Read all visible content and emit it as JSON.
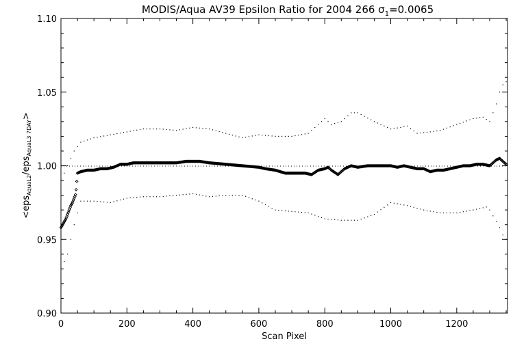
{
  "chart_data": {
    "type": "scatter",
    "title": "MODIS/Aqua AV39 Epsilon Ratio for 2004 266 σ",
    "title_sub": "1",
    "title_suffix": "=0.0065",
    "xlabel": "Scan Pixel",
    "ylabel_parts": [
      {
        "t": "<eps",
        "sub": false
      },
      {
        "t": "AquaL2",
        "sub": true
      },
      {
        "t": "/eps",
        "sub": false
      },
      {
        "t": "AquaL3 7DAY",
        "sub": true
      },
      {
        "t": ">",
        "sub": false
      }
    ],
    "xlim": [
      0,
      1354
    ],
    "ylim": [
      0.9,
      1.1
    ],
    "xticks": [
      0,
      200,
      400,
      600,
      800,
      1000,
      1200
    ],
    "yticks": [
      0.9,
      0.95,
      1.0,
      1.05,
      1.1
    ],
    "ytick_labels": [
      "0.90",
      "0.95",
      "1.00",
      "1.05",
      "1.10"
    ],
    "reference_line_y": 1.0,
    "grid": false,
    "series": [
      {
        "role": "mean",
        "style": "dense-markers",
        "color": "#000000",
        "points": [
          [
            0,
            0.958
          ],
          [
            5,
            0.96
          ],
          [
            10,
            0.962
          ],
          [
            15,
            0.964
          ],
          [
            20,
            0.967
          ],
          [
            25,
            0.97
          ],
          [
            30,
            0.973
          ],
          [
            35,
            0.975
          ],
          [
            40,
            0.978
          ],
          [
            45,
            0.981
          ],
          [
            50,
            0.995
          ],
          [
            60,
            0.996
          ],
          [
            80,
            0.997
          ],
          [
            100,
            0.997
          ],
          [
            120,
            0.998
          ],
          [
            140,
            0.998
          ],
          [
            160,
            0.999
          ],
          [
            180,
            1.001
          ],
          [
            200,
            1.001
          ],
          [
            220,
            1.002
          ],
          [
            250,
            1.002
          ],
          [
            280,
            1.002
          ],
          [
            300,
            1.002
          ],
          [
            320,
            1.002
          ],
          [
            350,
            1.002
          ],
          [
            380,
            1.003
          ],
          [
            400,
            1.003
          ],
          [
            420,
            1.003
          ],
          [
            450,
            1.002
          ],
          [
            500,
            1.001
          ],
          [
            550,
            1.0
          ],
          [
            600,
            0.999
          ],
          [
            620,
            0.998
          ],
          [
            650,
            0.997
          ],
          [
            680,
            0.995
          ],
          [
            700,
            0.995
          ],
          [
            720,
            0.995
          ],
          [
            740,
            0.995
          ],
          [
            760,
            0.994
          ],
          [
            780,
            0.997
          ],
          [
            800,
            0.998
          ],
          [
            810,
            0.999
          ],
          [
            820,
            0.997
          ],
          [
            840,
            0.994
          ],
          [
            860,
            0.998
          ],
          [
            880,
            1.0
          ],
          [
            900,
            0.999
          ],
          [
            930,
            1.0
          ],
          [
            960,
            1.0
          ],
          [
            980,
            1.0
          ],
          [
            1000,
            1.0
          ],
          [
            1020,
            0.999
          ],
          [
            1040,
            1.0
          ],
          [
            1060,
            0.999
          ],
          [
            1080,
            0.998
          ],
          [
            1100,
            0.998
          ],
          [
            1120,
            0.996
          ],
          [
            1140,
            0.997
          ],
          [
            1160,
            0.997
          ],
          [
            1180,
            0.998
          ],
          [
            1200,
            0.999
          ],
          [
            1220,
            1.0
          ],
          [
            1240,
            1.0
          ],
          [
            1260,
            1.001
          ],
          [
            1280,
            1.001
          ],
          [
            1300,
            1.0
          ],
          [
            1310,
            1.002
          ],
          [
            1320,
            1.004
          ],
          [
            1330,
            1.005
          ],
          [
            1340,
            1.003
          ],
          [
            1350,
            1.001
          ]
        ]
      },
      {
        "role": "upper-sigma",
        "style": "sparse-dots",
        "color": "#000000",
        "points": [
          [
            0,
            0.99
          ],
          [
            20,
            1.0
          ],
          [
            40,
            1.01
          ],
          [
            60,
            1.016
          ],
          [
            100,
            1.019
          ],
          [
            150,
            1.021
          ],
          [
            200,
            1.023
          ],
          [
            250,
            1.025
          ],
          [
            300,
            1.025
          ],
          [
            350,
            1.024
          ],
          [
            400,
            1.026
          ],
          [
            450,
            1.025
          ],
          [
            500,
            1.022
          ],
          [
            550,
            1.019
          ],
          [
            600,
            1.021
          ],
          [
            650,
            1.02
          ],
          [
            700,
            1.02
          ],
          [
            750,
            1.022
          ],
          [
            790,
            1.03
          ],
          [
            800,
            1.032
          ],
          [
            820,
            1.028
          ],
          [
            850,
            1.03
          ],
          [
            880,
            1.036
          ],
          [
            900,
            1.036
          ],
          [
            950,
            1.03
          ],
          [
            1000,
            1.025
          ],
          [
            1030,
            1.026
          ],
          [
            1050,
            1.027
          ],
          [
            1080,
            1.022
          ],
          [
            1120,
            1.023
          ],
          [
            1150,
            1.024
          ],
          [
            1200,
            1.028
          ],
          [
            1250,
            1.032
          ],
          [
            1280,
            1.033
          ],
          [
            1300,
            1.03
          ],
          [
            1320,
            1.042
          ],
          [
            1330,
            1.05
          ],
          [
            1340,
            1.055
          ],
          [
            1350,
            1.057
          ]
        ]
      },
      {
        "role": "lower-sigma",
        "style": "sparse-dots",
        "color": "#000000",
        "points": [
          [
            0,
            0.93
          ],
          [
            20,
            0.94
          ],
          [
            40,
            0.96
          ],
          [
            60,
            0.976
          ],
          [
            100,
            0.976
          ],
          [
            150,
            0.975
          ],
          [
            200,
            0.978
          ],
          [
            250,
            0.979
          ],
          [
            300,
            0.979
          ],
          [
            350,
            0.98
          ],
          [
            400,
            0.981
          ],
          [
            450,
            0.979
          ],
          [
            500,
            0.98
          ],
          [
            550,
            0.98
          ],
          [
            600,
            0.976
          ],
          [
            650,
            0.97
          ],
          [
            700,
            0.969
          ],
          [
            750,
            0.968
          ],
          [
            800,
            0.964
          ],
          [
            850,
            0.963
          ],
          [
            900,
            0.963
          ],
          [
            950,
            0.967
          ],
          [
            1000,
            0.975
          ],
          [
            1050,
            0.973
          ],
          [
            1100,
            0.97
          ],
          [
            1150,
            0.968
          ],
          [
            1200,
            0.968
          ],
          [
            1250,
            0.97
          ],
          [
            1290,
            0.972
          ],
          [
            1300,
            0.97
          ],
          [
            1320,
            0.962
          ],
          [
            1330,
            0.958
          ],
          [
            1340,
            0.953
          ],
          [
            1350,
            0.95
          ]
        ]
      }
    ]
  }
}
